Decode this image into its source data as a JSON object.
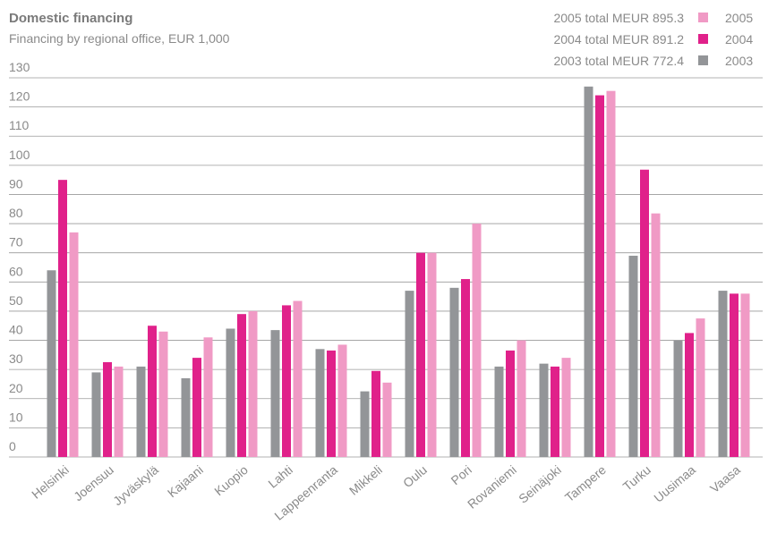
{
  "chart_data": {
    "type": "bar",
    "title": "Domestic financing",
    "subtitle": "Financing by regional office, EUR 1,000",
    "annotations": [
      "2005 total MEUR 895.3",
      "2004 total MEUR 891.2",
      "2003 total MEUR 772.4"
    ],
    "categories": [
      "Helsinki",
      "Joensuu",
      "Jyväskylä",
      "Kajaani",
      "Kuopio",
      "Lahti",
      "Lappeenranta",
      "Mikkeli",
      "Oulu",
      "Pori",
      "Rovaniemi",
      "Seinäjoki",
      "Tampere",
      "Turku",
      "Uusimaa",
      "Vaasa"
    ],
    "series": [
      {
        "name": "2003",
        "color": "#939598",
        "values": [
          64,
          29,
          31,
          27,
          44,
          43.5,
          37,
          22.5,
          57,
          58,
          31,
          32,
          127,
          69,
          40,
          57
        ]
      },
      {
        "name": "2004",
        "color": "#e0218a",
        "values": [
          95,
          32.5,
          45,
          34,
          49,
          52,
          36.5,
          29.5,
          70,
          61,
          36.5,
          31,
          124,
          98.5,
          42.5,
          56
        ]
      },
      {
        "name": "2005",
        "color": "#f09ac5",
        "values": [
          77,
          31,
          43,
          41,
          50,
          53.5,
          38.5,
          25.5,
          70,
          80,
          40,
          34,
          125.5,
          83.5,
          47.5,
          56
        ]
      }
    ],
    "ylim": [
      0,
      130
    ],
    "yticks": [
      0,
      10,
      20,
      30,
      40,
      50,
      60,
      70,
      80,
      90,
      100,
      110,
      120,
      130
    ],
    "grid": true
  }
}
